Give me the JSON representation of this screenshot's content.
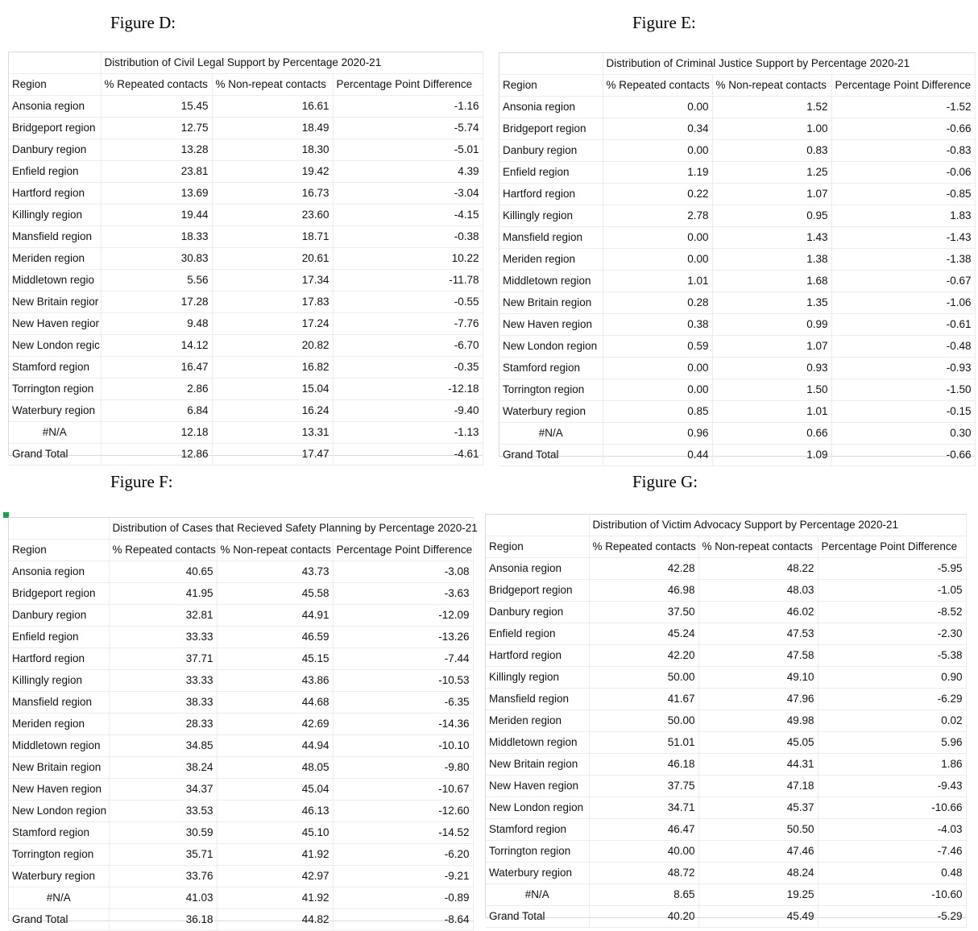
{
  "figures": [
    {
      "label": "Figure D:",
      "title": "Distribution of Civil Legal Support by Percentage 2020-21",
      "headers": [
        "Region",
        "% Repeated contacts",
        "% Non-repeat contacts",
        "Percentage Point Difference"
      ],
      "rows": [
        [
          "Ansonia region",
          "15.45",
          "16.61",
          "-1.16"
        ],
        [
          "Bridgeport region",
          "12.75",
          "18.49",
          "-5.74"
        ],
        [
          "Danbury region",
          "13.28",
          "18.30",
          "-5.01"
        ],
        [
          "Enfield region",
          "23.81",
          "19.42",
          "4.39"
        ],
        [
          "Hartford region",
          "13.69",
          "16.73",
          "-3.04"
        ],
        [
          "Killingly region",
          "19.44",
          "23.60",
          "-4.15"
        ],
        [
          "Mansfield region",
          "18.33",
          "18.71",
          "-0.38"
        ],
        [
          "Meriden region",
          "30.83",
          "20.61",
          "10.22"
        ],
        [
          "Middletown regio",
          "5.56",
          "17.34",
          "-11.78"
        ],
        [
          "New Britain regior",
          "17.28",
          "17.83",
          "-0.55"
        ],
        [
          "New Haven regior",
          "9.48",
          "17.24",
          "-7.76"
        ],
        [
          "New London regic",
          "14.12",
          "20.82",
          "-6.70"
        ],
        [
          "Stamford region",
          "16.47",
          "16.82",
          "-0.35"
        ],
        [
          "Torrington region",
          "2.86",
          "15.04",
          "-12.18"
        ],
        [
          "Waterbury region",
          "6.84",
          "16.24",
          "-9.40"
        ],
        [
          "#N/A",
          "12.18",
          "13.31",
          "-1.13"
        ],
        [
          "Grand Total",
          "12.86",
          "17.47",
          "-4.61"
        ]
      ]
    },
    {
      "label": "Figure E:",
      "title": "Distribution of Criminal Justice Support by Percentage 2020-21",
      "headers": [
        "Region",
        "% Repeated contacts",
        "% Non-repeat contacts",
        "Percentage Point Difference"
      ],
      "rows": [
        [
          "Ansonia region",
          "0.00",
          "1.52",
          "-1.52"
        ],
        [
          "Bridgeport region",
          "0.34",
          "1.00",
          "-0.66"
        ],
        [
          "Danbury region",
          "0.00",
          "0.83",
          "-0.83"
        ],
        [
          "Enfield region",
          "1.19",
          "1.25",
          "-0.06"
        ],
        [
          "Hartford region",
          "0.22",
          "1.07",
          "-0.85"
        ],
        [
          "Killingly region",
          "2.78",
          "0.95",
          "1.83"
        ],
        [
          "Mansfield region",
          "0.00",
          "1.43",
          "-1.43"
        ],
        [
          "Meriden region",
          "0.00",
          "1.38",
          "-1.38"
        ],
        [
          "Middletown region",
          "1.01",
          "1.68",
          "-0.67"
        ],
        [
          "New Britain region",
          "0.28",
          "1.35",
          "-1.06"
        ],
        [
          "New Haven region",
          "0.38",
          "0.99",
          "-0.61"
        ],
        [
          "New London region",
          "0.59",
          "1.07",
          "-0.48"
        ],
        [
          "Stamford region",
          "0.00",
          "0.93",
          "-0.93"
        ],
        [
          "Torrington region",
          "0.00",
          "1.50",
          "-1.50"
        ],
        [
          "Waterbury region",
          "0.85",
          "1.01",
          "-0.15"
        ],
        [
          "#N/A",
          "0.96",
          "0.66",
          "0.30"
        ],
        [
          "Grand Total",
          "0.44",
          "1.09",
          "-0.66"
        ]
      ]
    },
    {
      "label": "Figure F:",
      "title": "Distribution of Cases that Recieved Safety Planning by Percentage 2020-21",
      "headers": [
        "Region",
        "% Repeated contacts",
        "% Non-repeat contacts",
        "Percentage Point Difference"
      ],
      "rows": [
        [
          "Ansonia region",
          "40.65",
          "43.73",
          "-3.08"
        ],
        [
          "Bridgeport region",
          "41.95",
          "45.58",
          "-3.63"
        ],
        [
          "Danbury region",
          "32.81",
          "44.91",
          "-12.09"
        ],
        [
          "Enfield region",
          "33.33",
          "46.59",
          "-13.26"
        ],
        [
          "Hartford region",
          "37.71",
          "45.15",
          "-7.44"
        ],
        [
          "Killingly region",
          "33.33",
          "43.86",
          "-10.53"
        ],
        [
          "Mansfield region",
          "38.33",
          "44.68",
          "-6.35"
        ],
        [
          "Meriden region",
          "28.33",
          "42.69",
          "-14.36"
        ],
        [
          "Middletown region",
          "34.85",
          "44.94",
          "-10.10"
        ],
        [
          "New Britain region",
          "38.24",
          "48.05",
          "-9.80"
        ],
        [
          "New Haven region",
          "34.37",
          "45.04",
          "-10.67"
        ],
        [
          "New London region",
          "33.53",
          "46.13",
          "-12.60"
        ],
        [
          "Stamford region",
          "30.59",
          "45.10",
          "-14.52"
        ],
        [
          "Torrington region",
          "35.71",
          "41.92",
          "-6.20"
        ],
        [
          "Waterbury region",
          "33.76",
          "42.97",
          "-9.21"
        ],
        [
          "#N/A",
          "41.03",
          "41.92",
          "-0.89"
        ],
        [
          "Grand Total",
          "36.18",
          "44.82",
          "-8.64"
        ]
      ]
    },
    {
      "label": "Figure G:",
      "title": "Distribution of Victim Advocacy Support by Percentage 2020-21",
      "headers": [
        "Region",
        "% Repeated contacts",
        "% Non-repeat contacts",
        "Percentage Point Difference"
      ],
      "rows": [
        [
          "Ansonia region",
          "42.28",
          "48.22",
          "-5.95"
        ],
        [
          "Bridgeport region",
          "46.98",
          "48.03",
          "-1.05"
        ],
        [
          "Danbury region",
          "37.50",
          "46.02",
          "-8.52"
        ],
        [
          "Enfield region",
          "45.24",
          "47.53",
          "-2.30"
        ],
        [
          "Hartford region",
          "42.20",
          "47.58",
          "-5.38"
        ],
        [
          "Killingly region",
          "50.00",
          "49.10",
          "0.90"
        ],
        [
          "Mansfield region",
          "41.67",
          "47.96",
          "-6.29"
        ],
        [
          "Meriden region",
          "50.00",
          "49.98",
          "0.02"
        ],
        [
          "Middletown region",
          "51.01",
          "45.05",
          "5.96"
        ],
        [
          "New Britain region",
          "46.18",
          "44.31",
          "1.86"
        ],
        [
          "New Haven region",
          "37.75",
          "47.18",
          "-9.43"
        ],
        [
          "New London region",
          "34.71",
          "45.37",
          "-10.66"
        ],
        [
          "Stamford region",
          "46.47",
          "50.50",
          "-4.03"
        ],
        [
          "Torrington region",
          "40.00",
          "47.46",
          "-7.46"
        ],
        [
          "Waterbury region",
          "48.72",
          "48.24",
          "0.48"
        ],
        [
          "#N/A",
          "8.65",
          "19.25",
          "-10.60"
        ],
        [
          "Grand Total",
          "40.20",
          "45.49",
          "-5.29"
        ]
      ]
    }
  ]
}
